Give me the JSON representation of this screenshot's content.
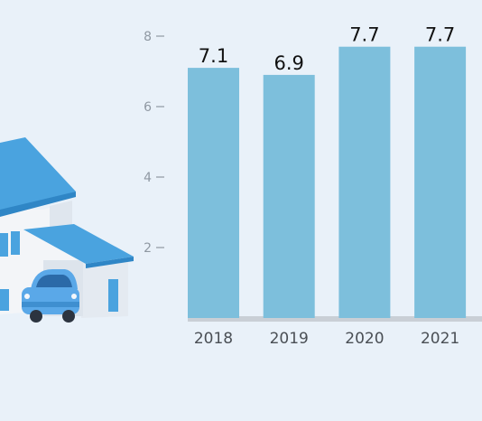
{
  "chart_data": {
    "type": "bar",
    "categories": [
      "2018",
      "2019",
      "2020",
      "2021"
    ],
    "values": [
      7.1,
      6.9,
      7.7,
      7.7
    ],
    "value_labels": [
      "7.1",
      "6.9",
      "7.7",
      "7.7"
    ],
    "y_ticks": [
      2,
      4,
      6,
      8
    ],
    "y_tick_labels": [
      "2",
      "4",
      "6",
      "8"
    ],
    "ylim": [
      0,
      8
    ],
    "grid": false,
    "bar_color": "#7dbfdc",
    "baseline_color": "#c9cfd6",
    "tick_label_color": "#8f98a2",
    "category_label_color": "#4a4f55",
    "value_label_color": "#111111"
  },
  "illustration": {
    "icon": "house-with-car-illustration",
    "roof_color": "#4aa3df",
    "wall_color": "#f3f5f8",
    "car_color": "#5aa8e8"
  }
}
